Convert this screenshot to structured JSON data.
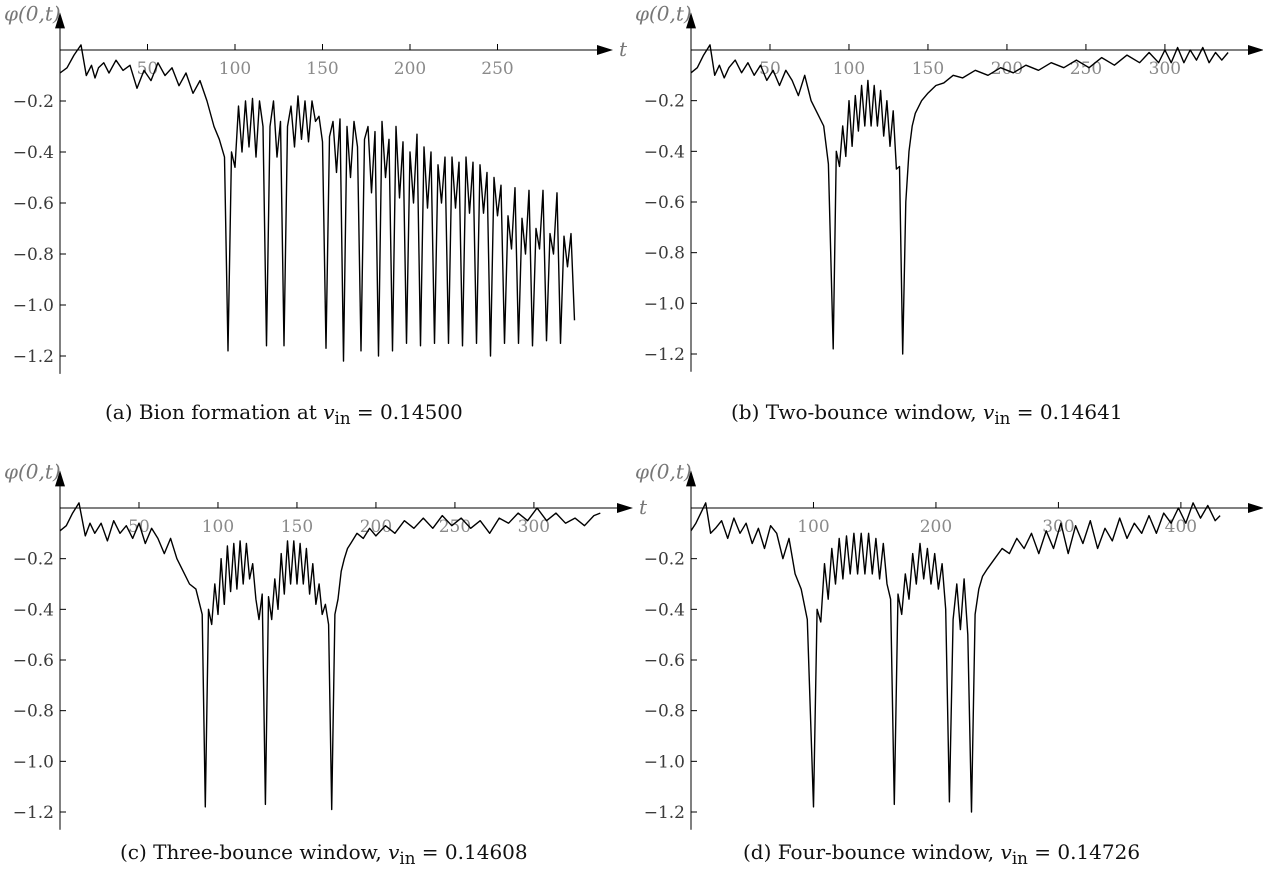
{
  "chart_data": [
    {
      "type": "line",
      "panel": "a",
      "ylabel": "φ(0,t)",
      "xlabel": "t",
      "xticks": [
        50,
        100,
        150,
        200,
        250
      ],
      "yticks": [
        -0.2,
        -0.4,
        -0.6,
        -0.8,
        -1.0,
        -1.2
      ],
      "ytick_labels": [
        "−0.2",
        "−0.4",
        "−0.6",
        "−0.8",
        "−1.0",
        "−1.2"
      ],
      "xlim": [
        0,
        300
      ],
      "ylim": [
        -1.27,
        0.03
      ],
      "caption_prefix": "(a) Bion formation at ",
      "caption_var": "v",
      "caption_sub": "in",
      "caption_value": " = 0.14500",
      "series": [
        {
          "x": [
            0,
            4,
            8,
            12,
            15,
            18,
            20,
            22,
            25,
            28,
            32,
            36,
            40,
            44,
            48,
            52,
            56,
            60,
            64,
            68,
            72,
            76,
            80,
            84,
            88,
            91,
            94,
            96,
            98,
            100,
            102,
            104,
            106,
            108,
            110,
            112,
            114,
            116,
            118,
            120,
            122,
            124,
            126,
            128,
            130,
            132,
            134,
            136,
            138,
            140,
            142,
            144,
            146,
            148,
            150,
            152,
            154,
            156,
            158,
            160,
            162,
            164,
            166,
            168,
            170,
            172,
            174,
            176,
            178,
            180,
            182,
            184,
            186,
            188,
            190,
            192,
            194,
            196,
            198,
            200,
            202,
            204,
            206,
            208,
            210,
            212,
            214,
            216,
            218,
            220,
            222,
            224,
            226,
            228,
            230,
            232,
            234,
            236,
            238,
            240,
            242,
            244,
            246,
            248,
            250,
            252,
            254,
            256,
            258,
            260,
            262,
            264,
            266,
            268,
            270,
            272,
            274,
            276,
            278,
            280,
            282,
            284,
            286,
            288,
            290,
            292,
            294
          ],
          "y": [
            -0.09,
            -0.07,
            -0.02,
            0.02,
            -0.1,
            -0.06,
            -0.11,
            -0.07,
            -0.05,
            -0.09,
            -0.04,
            -0.08,
            -0.06,
            -0.15,
            -0.08,
            -0.12,
            -0.05,
            -0.1,
            -0.07,
            -0.14,
            -0.09,
            -0.17,
            -0.12,
            -0.2,
            -0.3,
            -0.35,
            -0.42,
            -1.18,
            -0.4,
            -0.46,
            -0.22,
            -0.4,
            -0.2,
            -0.38,
            -0.19,
            -0.42,
            -0.2,
            -0.3,
            -1.16,
            -0.3,
            -0.2,
            -0.42,
            -0.28,
            -1.16,
            -0.3,
            -0.22,
            -0.38,
            -0.18,
            -0.35,
            -0.2,
            -0.36,
            -0.2,
            -0.28,
            -0.26,
            -0.36,
            -1.17,
            -0.34,
            -0.28,
            -0.48,
            -0.27,
            -1.22,
            -0.3,
            -0.5,
            -0.28,
            -0.38,
            -1.18,
            -0.35,
            -0.3,
            -0.56,
            -0.32,
            -1.2,
            -0.28,
            -0.5,
            -0.35,
            -1.18,
            -0.3,
            -0.58,
            -0.36,
            -1.15,
            -0.4,
            -0.6,
            -0.33,
            -1.16,
            -0.38,
            -0.62,
            -0.4,
            -1.15,
            -0.45,
            -0.6,
            -0.42,
            -1.15,
            -0.42,
            -0.62,
            -0.44,
            -1.16,
            -0.42,
            -0.64,
            -0.44,
            -1.15,
            -0.45,
            -0.64,
            -0.48,
            -1.2,
            -0.5,
            -0.65,
            -0.53,
            -1.15,
            -0.65,
            -0.78,
            -0.54,
            -1.15,
            -0.66,
            -0.8,
            -0.55,
            -1.16,
            -0.7,
            -0.78,
            -0.55,
            -1.14,
            -0.72,
            -0.8,
            -0.56,
            -1.15,
            -0.73,
            -0.85,
            -0.72,
            -1.06
          ]
        }
      ]
    },
    {
      "type": "line",
      "panel": "b",
      "ylabel": "φ(0,t)",
      "xlabel": "t",
      "xticks": [
        50,
        100,
        150,
        200,
        250,
        300
      ],
      "yticks": [
        -0.2,
        -0.4,
        -0.6,
        -0.8,
        -1.0,
        -1.2
      ],
      "ytick_labels": [
        "−0.2",
        "−0.4",
        "−0.6",
        "−0.8",
        "−1.0",
        "−1.2"
      ],
      "xlim": [
        0,
        345
      ],
      "ylim": [
        -1.27,
        0.03
      ],
      "caption_prefix": "(b) Two-bounce window, ",
      "caption_var": "v",
      "caption_sub": "in",
      "caption_value": " = 0.14641",
      "series": [
        {
          "x": [
            0,
            4,
            8,
            12,
            15,
            18,
            21,
            24,
            28,
            32,
            36,
            40,
            44,
            48,
            52,
            56,
            60,
            64,
            68,
            72,
            76,
            80,
            84,
            87,
            90,
            92,
            94,
            96,
            98,
            100,
            102,
            104,
            106,
            108,
            110,
            112,
            114,
            116,
            118,
            120,
            122,
            124,
            126,
            128,
            130,
            132,
            134,
            136,
            138,
            140,
            142,
            146,
            150,
            155,
            160,
            166,
            172,
            180,
            188,
            196,
            204,
            212,
            220,
            228,
            236,
            244,
            252,
            260,
            268,
            276,
            284,
            290,
            296,
            300,
            304,
            308,
            312,
            316,
            320,
            324,
            328,
            332,
            336,
            340
          ],
          "y": [
            -0.09,
            -0.07,
            -0.02,
            0.02,
            -0.1,
            -0.06,
            -0.11,
            -0.07,
            -0.04,
            -0.09,
            -0.05,
            -0.1,
            -0.06,
            -0.12,
            -0.08,
            -0.14,
            -0.08,
            -0.12,
            -0.18,
            -0.1,
            -0.2,
            -0.25,
            -0.3,
            -0.45,
            -1.18,
            -0.4,
            -0.46,
            -0.3,
            -0.42,
            -0.2,
            -0.38,
            -0.18,
            -0.32,
            -0.14,
            -0.3,
            -0.12,
            -0.3,
            -0.14,
            -0.3,
            -0.16,
            -0.34,
            -0.2,
            -0.38,
            -0.24,
            -0.47,
            -0.46,
            -1.2,
            -0.6,
            -0.4,
            -0.3,
            -0.25,
            -0.2,
            -0.17,
            -0.14,
            -0.13,
            -0.1,
            -0.11,
            -0.08,
            -0.1,
            -0.07,
            -0.09,
            -0.06,
            -0.08,
            -0.05,
            -0.07,
            -0.04,
            -0.07,
            -0.03,
            -0.06,
            -0.02,
            -0.05,
            -0.01,
            -0.05,
            0.0,
            -0.05,
            0.01,
            -0.05,
            0.0,
            -0.04,
            0.01,
            -0.05,
            -0.01,
            -0.04,
            -0.01
          ]
        }
      ]
    },
    {
      "type": "line",
      "panel": "c",
      "ylabel": "φ(0,t)",
      "xlabel": "t",
      "xticks": [
        50,
        100,
        150,
        200,
        250,
        300
      ],
      "yticks": [
        -0.2,
        -0.4,
        -0.6,
        -0.8,
        -1.0,
        -1.2
      ],
      "ytick_labels": [
        "−0.2",
        "−0.4",
        "−0.6",
        "−0.8",
        "−1.0",
        "−1.2"
      ],
      "xlim": [
        0,
        345
      ],
      "ylim": [
        -1.27,
        0.03
      ],
      "caption_prefix": "(c) Three-bounce window, ",
      "caption_var": "v",
      "caption_sub": "in",
      "caption_value": " = 0.14608",
      "series": [
        {
          "x": [
            0,
            4,
            8,
            12,
            16,
            19,
            22,
            26,
            30,
            34,
            38,
            42,
            46,
            50,
            54,
            58,
            62,
            66,
            70,
            74,
            78,
            82,
            86,
            90,
            92,
            94,
            96,
            98,
            100,
            102,
            104,
            106,
            108,
            110,
            112,
            114,
            116,
            118,
            120,
            122,
            124,
            126,
            128,
            130,
            132,
            134,
            136,
            138,
            140,
            142,
            144,
            146,
            148,
            150,
            152,
            154,
            156,
            158,
            160,
            162,
            164,
            166,
            168,
            170,
            172,
            174,
            176,
            178,
            180,
            182,
            184,
            188,
            192,
            196,
            200,
            206,
            212,
            218,
            224,
            230,
            236,
            242,
            248,
            254,
            260,
            266,
            272,
            278,
            284,
            290,
            296,
            302,
            308,
            314,
            320,
            326,
            332,
            338,
            342
          ],
          "y": [
            -0.09,
            -0.07,
            -0.02,
            0.02,
            -0.11,
            -0.06,
            -0.1,
            -0.06,
            -0.13,
            -0.05,
            -0.1,
            -0.07,
            -0.12,
            -0.06,
            -0.14,
            -0.08,
            -0.12,
            -0.18,
            -0.12,
            -0.2,
            -0.25,
            -0.3,
            -0.32,
            -0.42,
            -1.18,
            -0.4,
            -0.46,
            -0.3,
            -0.42,
            -0.2,
            -0.38,
            -0.15,
            -0.33,
            -0.14,
            -0.32,
            -0.13,
            -0.3,
            -0.14,
            -0.28,
            -0.22,
            -0.36,
            -0.44,
            -0.34,
            -1.17,
            -0.35,
            -0.44,
            -0.28,
            -0.4,
            -0.18,
            -0.34,
            -0.13,
            -0.3,
            -0.13,
            -0.3,
            -0.14,
            -0.3,
            -0.16,
            -0.34,
            -0.22,
            -0.38,
            -0.3,
            -0.42,
            -0.38,
            -0.46,
            -1.19,
            -0.42,
            -0.36,
            -0.25,
            -0.2,
            -0.16,
            -0.14,
            -0.1,
            -0.12,
            -0.08,
            -0.11,
            -0.07,
            -0.1,
            -0.05,
            -0.08,
            -0.04,
            -0.08,
            -0.03,
            -0.07,
            -0.04,
            -0.08,
            -0.05,
            -0.1,
            -0.04,
            -0.06,
            -0.02,
            -0.05,
            0.0,
            -0.05,
            -0.02,
            -0.06,
            -0.04,
            -0.07,
            -0.03,
            -0.02
          ]
        }
      ]
    },
    {
      "type": "line",
      "panel": "d",
      "ylabel": "φ(0,t)",
      "xlabel": "t",
      "xticks": [
        100,
        200,
        300,
        400
      ],
      "yticks": [
        -0.2,
        -0.4,
        -0.6,
        -0.8,
        -1.0,
        -1.2
      ],
      "ytick_labels": [
        "−0.2",
        "−0.4",
        "−0.6",
        "−0.8",
        "−1.0",
        "−1.2"
      ],
      "xlim": [
        0,
        445
      ],
      "ylim": [
        -1.27,
        0.03
      ],
      "caption_prefix": "(d) Four-bounce window, ",
      "caption_var": "v",
      "caption_sub": "in",
      "caption_value": " = 0.14726",
      "series": [
        {
          "x": [
            0,
            4,
            8,
            12,
            16,
            20,
            25,
            30,
            35,
            40,
            45,
            50,
            55,
            60,
            65,
            70,
            75,
            80,
            85,
            90,
            95,
            100,
            103,
            106,
            109,
            112,
            115,
            118,
            121,
            124,
            127,
            130,
            133,
            136,
            139,
            142,
            145,
            148,
            151,
            154,
            157,
            160,
            163,
            166,
            169,
            172,
            175,
            178,
            181,
            184,
            187,
            190,
            193,
            196,
            199,
            202,
            205,
            208,
            211,
            214,
            217,
            220,
            223,
            226,
            229,
            232,
            235,
            238,
            242,
            248,
            254,
            260,
            266,
            272,
            278,
            284,
            290,
            296,
            302,
            308,
            314,
            320,
            326,
            332,
            338,
            344,
            350,
            356,
            362,
            368,
            374,
            380,
            386,
            392,
            398,
            404,
            410,
            416,
            422,
            428,
            432
          ],
          "y": [
            -0.09,
            -0.06,
            -0.02,
            0.02,
            -0.1,
            -0.08,
            -0.05,
            -0.12,
            -0.04,
            -0.1,
            -0.06,
            -0.14,
            -0.08,
            -0.16,
            -0.07,
            -0.1,
            -0.2,
            -0.12,
            -0.26,
            -0.32,
            -0.44,
            -1.18,
            -0.4,
            -0.45,
            -0.22,
            -0.36,
            -0.16,
            -0.3,
            -0.12,
            -0.28,
            -0.11,
            -0.26,
            -0.1,
            -0.26,
            -0.1,
            -0.26,
            -0.1,
            -0.26,
            -0.12,
            -0.28,
            -0.14,
            -0.3,
            -0.36,
            -1.17,
            -0.34,
            -0.42,
            -0.26,
            -0.36,
            -0.18,
            -0.3,
            -0.14,
            -0.28,
            -0.16,
            -0.3,
            -0.18,
            -0.32,
            -0.22,
            -0.4,
            -1.16,
            -0.44,
            -0.3,
            -0.48,
            -0.28,
            -0.5,
            -1.2,
            -0.42,
            -0.32,
            -0.27,
            -0.24,
            -0.2,
            -0.16,
            -0.18,
            -0.12,
            -0.16,
            -0.1,
            -0.18,
            -0.09,
            -0.16,
            -0.06,
            -0.18,
            -0.07,
            -0.14,
            -0.05,
            -0.16,
            -0.08,
            -0.13,
            -0.04,
            -0.12,
            -0.06,
            -0.1,
            -0.03,
            -0.1,
            -0.02,
            -0.06,
            0.0,
            -0.06,
            0.02,
            -0.04,
            0.01,
            -0.05,
            -0.03
          ]
        }
      ]
    }
  ]
}
